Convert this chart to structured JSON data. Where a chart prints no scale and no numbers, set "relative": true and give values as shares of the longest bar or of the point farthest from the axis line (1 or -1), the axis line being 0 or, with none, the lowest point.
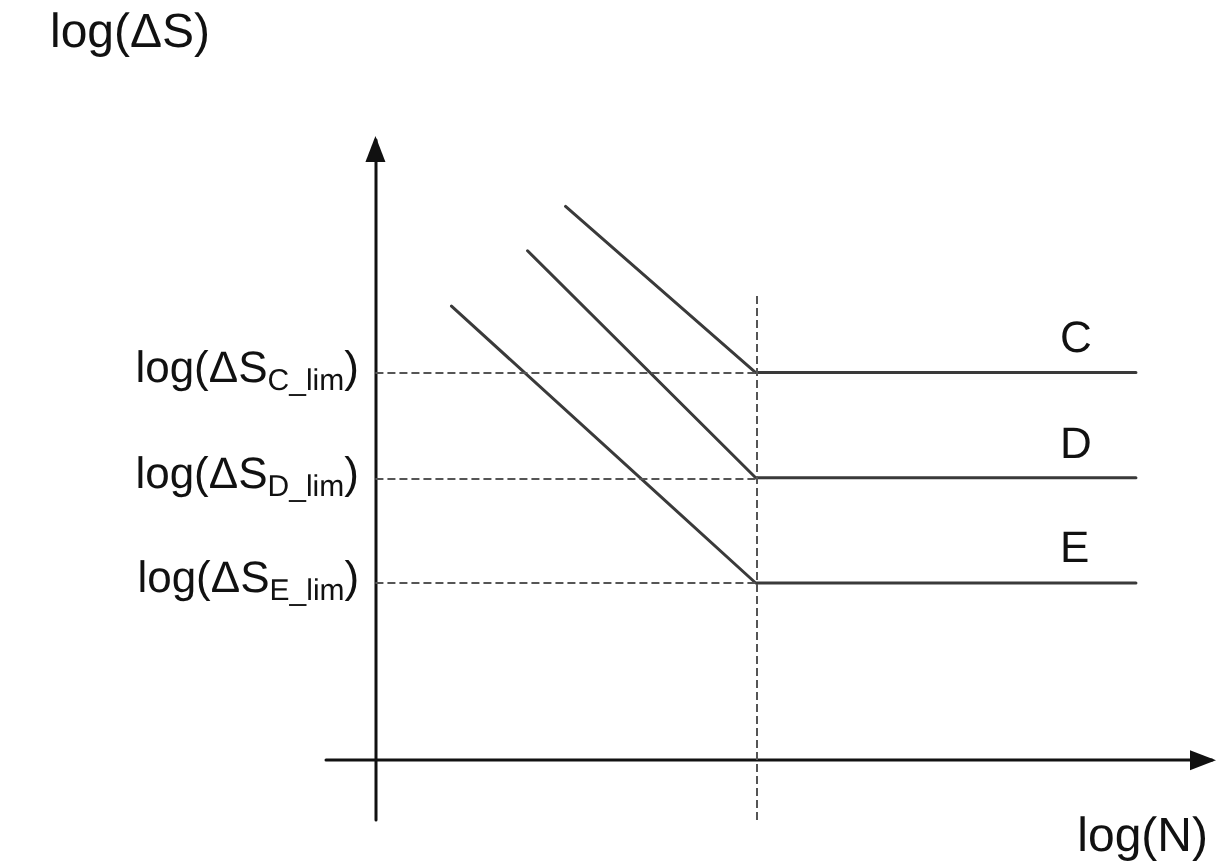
{
  "chart_data": {
    "type": "line",
    "relative": true,
    "xlabel": "log(N)",
    "ylabel": "log(ΔS)",
    "categories": [
      null,
      null,
      null,
      null,
      null,
      null,
      null,
      null,
      null,
      null,
      null,
      null,
      null,
      null,
      null,
      null,
      null,
      null,
      null,
      null,
      null
    ],
    "series": [
      {
        "name": "C",
        "color": "#3a3a3a",
        "values": [
          null,
          null,
          null,
          null,
          null,
          1,
          null,
          null,
          null,
          null,
          0.7,
          null,
          null,
          null,
          null,
          null,
          null,
          null,
          null,
          null,
          0.7
        ]
      },
      {
        "name": "D",
        "color": "#3a3a3a",
        "values": [
          null,
          null,
          null,
          null,
          0.92,
          null,
          null,
          null,
          null,
          null,
          0.51,
          null,
          null,
          null,
          null,
          null,
          null,
          null,
          null,
          null,
          0.51
        ]
      },
      {
        "name": "E",
        "color": "#3a3a3a",
        "values": [
          null,
          null,
          0.82,
          null,
          null,
          null,
          null,
          null,
          null,
          null,
          0.32,
          null,
          null,
          null,
          null,
          null,
          null,
          null,
          null,
          null,
          0.32
        ]
      }
    ],
    "ref_lines": [
      {
        "axis": "y",
        "value": 0.7,
        "label": "log(ΔS$_{C_lim}$)",
        "line_style": "dashed"
      },
      {
        "axis": "y",
        "value": 0.51,
        "label": "log(ΔS$_{D_lim}$)",
        "line_style": "dashed"
      },
      {
        "axis": "y",
        "value": 0.32,
        "label": "log(ΔS$_{E_lim}$)",
        "line_style": "dashed"
      }
    ],
    "grid": false,
    "legend": false,
    "marker": "none",
    "line_style": "solid"
  }
}
